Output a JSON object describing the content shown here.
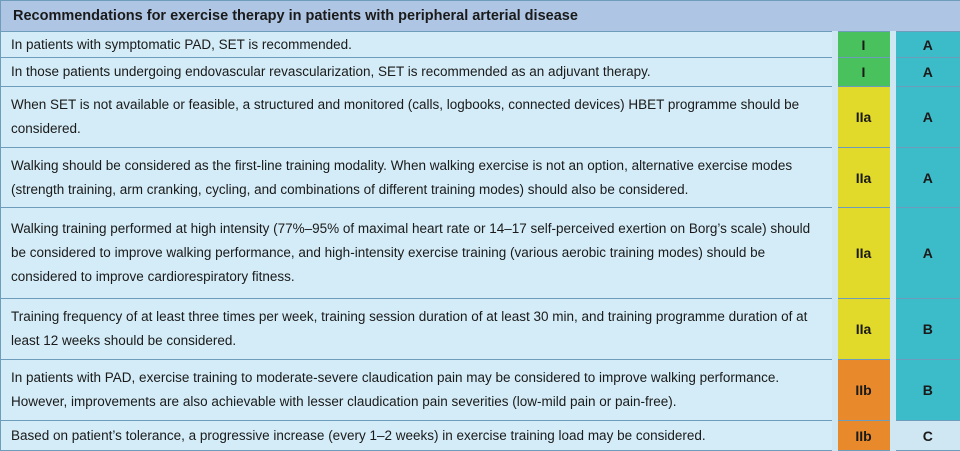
{
  "title": "Recommendations for exercise therapy in patients with peripheral arterial disease",
  "rows": [
    {
      "text": "In patients with symptomatic PAD, SET is recommended.",
      "class": "I",
      "level": "A"
    },
    {
      "text": "In those patients undergoing endovascular revascularization, SET is recommended as an adjuvant therapy.",
      "class": "I",
      "level": "A"
    },
    {
      "text": "When SET is not available or feasible, a structured and monitored (calls, logbooks, connected devices) HBET programme should be considered.",
      "class": "IIa",
      "level": "A"
    },
    {
      "text": "Walking should be considered as the first-line training modality. When walking exercise is not an option, alternative exercise modes (strength training, arm cranking, cycling, and combinations of different training modes) should also be considered.",
      "class": "IIa",
      "level": "A"
    },
    {
      "text": "Walking training performed at high intensity (77%–95% of maximal heart rate or 14–17 self-perceived exertion on Borg’s scale) should be considered to improve walking performance, and high-intensity exercise training (various aerobic training modes) should be considered to improve cardiorespiratory fitness.",
      "class": "IIa",
      "level": "A"
    },
    {
      "text": "Training frequency of at least three times per week, training session duration of at least 30 min, and training programme duration of at least 12 weeks should be considered.",
      "class": "IIa",
      "level": "B"
    },
    {
      "text": "In patients with PAD, exercise training to moderate-severe claudication pain may be considered to improve walking performance. However, improvements are also achievable with lesser claudication pain severities (low-mild pain or pain-free).",
      "class": "IIb",
      "level": "B"
    },
    {
      "text": "Based on patient’s tolerance, a progressive increase (every 1–2 weeks) in exercise training load may be considered.",
      "class": "IIb",
      "level": "C"
    }
  ]
}
